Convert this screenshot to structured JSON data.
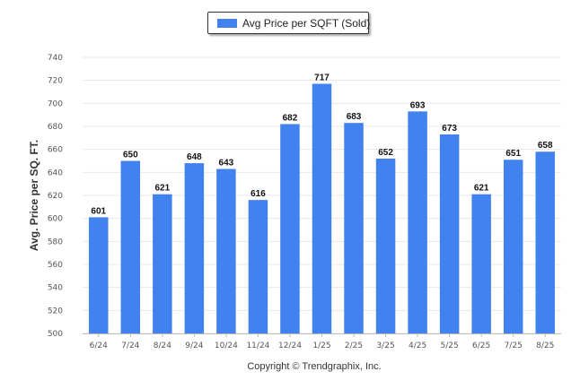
{
  "colors": {
    "bar": "#4282ef",
    "grid": "#e8e8e8"
  },
  "legend": {
    "label": "Avg Price per SQFT (Sold)"
  },
  "footer": {
    "copyright": "Copyright © Trendgraphix, Inc."
  },
  "chart_data": {
    "type": "bar",
    "title": "",
    "xlabel": "",
    "ylabel": "Avg. Price per SQ. FT.",
    "legend_position": "top-center",
    "grid": true,
    "ylim": [
      500,
      740
    ],
    "yticks": [
      "500",
      "520",
      "540",
      "560",
      "580",
      "600",
      "620",
      "640",
      "660",
      "680",
      "700",
      "720",
      "740"
    ],
    "categories": [
      "6/24",
      "7/24",
      "8/24",
      "9/24",
      "10/24",
      "11/24",
      "12/24",
      "1/25",
      "2/25",
      "3/25",
      "4/25",
      "5/25",
      "6/25",
      "7/25",
      "8/25"
    ],
    "series": [
      {
        "name": "Avg Price per SQFT (Sold)",
        "values": [
          601,
          650,
          621,
          648,
          643,
          616,
          682,
          717,
          683,
          652,
          693,
          673,
          621,
          651,
          658
        ]
      }
    ]
  }
}
